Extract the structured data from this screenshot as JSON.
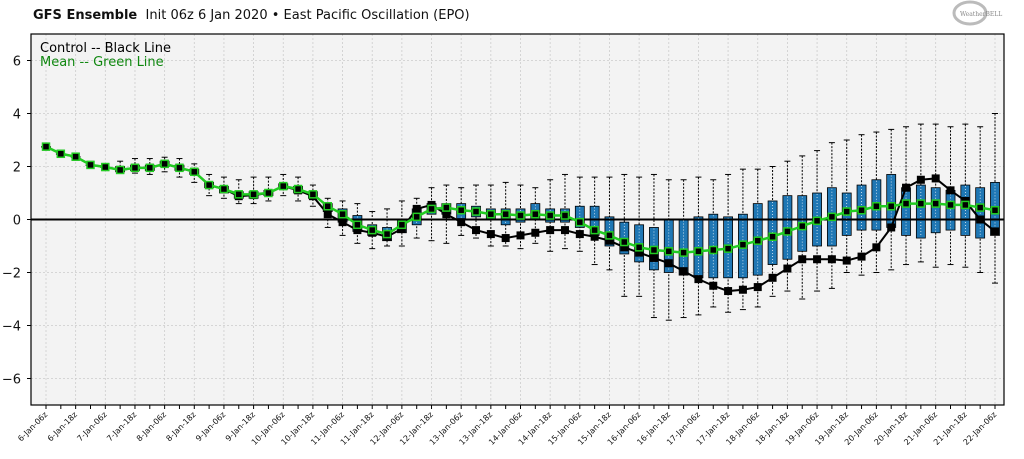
{
  "header": {
    "title_bold": "GFS Ensemble",
    "title_rest": "Init 06z 6 Jan 2020 • East Pacific Oscillation (EPO)",
    "logo_text": "WeatherBELL"
  },
  "colors": {
    "control": "#000000",
    "mean": "#22cc22",
    "mean_text": "#118811",
    "box_fill": "#1f77b4",
    "plot_bg": "#f3f3f3",
    "grid": "#cccccc"
  },
  "chart_data": {
    "type": "box",
    "title": "GFS Ensemble Init 06z 6 Jan 2020 • East Pacific Oscillation (EPO)",
    "xlabel": "",
    "ylabel": "",
    "ylim": [
      -7,
      7
    ],
    "yticks": [
      -6,
      -4,
      -2,
      0,
      2,
      4,
      6
    ],
    "grid": true,
    "legend": {
      "placement": "top-left",
      "entries": [
        {
          "label": "Control -- Black Line",
          "color_key": "control"
        },
        {
          "label": "Mean -- Green Line",
          "color_key": "mean_text"
        }
      ]
    },
    "x_labels": [
      "6-Jan-06z",
      "6-Jan-18z",
      "7-Jan-06z",
      "7-Jan-18z",
      "8-Jan-06z",
      "8-Jan-18z",
      "9-Jan-06z",
      "9-Jan-18z",
      "10-Jan-06z",
      "10-Jan-18z",
      "11-Jan-06z",
      "11-Jan-18z",
      "12-Jan-06z",
      "12-Jan-18z",
      "13-Jan-06z",
      "13-Jan-18z",
      "14-Jan-06z",
      "14-Jan-18z",
      "15-Jan-06z",
      "15-Jan-18z",
      "16-Jan-06z",
      "16-Jan-18z",
      "17-Jan-06z",
      "17-Jan-18z",
      "18-Jan-06z",
      "18-Jan-18z",
      "19-Jan-06z",
      "19-Jan-18z",
      "20-Jan-06z",
      "20-Jan-18z",
      "21-Jan-06z",
      "21-Jan-18z",
      "22-Jan-06z"
    ],
    "x_label_every": 2,
    "n_points": 65,
    "series": [
      {
        "name": "Control",
        "values": [
          2.75,
          2.48,
          2.37,
          2.06,
          1.98,
          1.87,
          1.95,
          1.95,
          2.1,
          1.95,
          1.8,
          1.3,
          1.15,
          0.88,
          0.92,
          1.0,
          1.26,
          1.1,
          0.88,
          0.2,
          -0.1,
          -0.4,
          -0.5,
          -0.65,
          -0.35,
          0.4,
          0.55,
          0.2,
          -0.1,
          -0.4,
          -0.55,
          -0.7,
          -0.6,
          -0.5,
          -0.4,
          -0.4,
          -0.55,
          -0.65,
          -0.8,
          -1.05,
          -1.25,
          -1.45,
          -1.65,
          -1.95,
          -2.25,
          -2.5,
          -2.7,
          -2.65,
          -2.55,
          -2.2,
          -1.85,
          -1.5,
          -1.5,
          -1.5,
          -1.55,
          -1.4,
          -1.05,
          -0.3,
          1.2,
          1.5,
          1.55,
          1.1,
          0.7,
          0.0,
          -0.45
        ]
      },
      {
        "name": "Mean",
        "values": [
          2.75,
          2.48,
          2.37,
          2.06,
          1.98,
          1.87,
          1.95,
          1.95,
          2.1,
          1.95,
          1.8,
          1.3,
          1.15,
          0.95,
          0.95,
          1.0,
          1.26,
          1.15,
          0.95,
          0.5,
          0.2,
          -0.2,
          -0.4,
          -0.55,
          -0.2,
          0.1,
          0.4,
          0.45,
          0.35,
          0.3,
          0.2,
          0.2,
          0.15,
          0.2,
          0.15,
          0.15,
          -0.1,
          -0.4,
          -0.6,
          -0.85,
          -1.05,
          -1.15,
          -1.2,
          -1.25,
          -1.2,
          -1.15,
          -1.1,
          -0.95,
          -0.8,
          -0.65,
          -0.45,
          -0.25,
          -0.05,
          0.1,
          0.3,
          0.35,
          0.5,
          0.5,
          0.6,
          0.6,
          0.6,
          0.55,
          0.55,
          0.45,
          0.35
        ]
      }
    ],
    "boxes": {
      "q1": [
        2.75,
        2.48,
        2.37,
        2.06,
        1.98,
        1.8,
        1.85,
        1.85,
        2.0,
        1.85,
        1.7,
        1.2,
        1.0,
        0.8,
        0.8,
        0.9,
        1.15,
        1.0,
        0.8,
        0.3,
        -0.1,
        -0.45,
        -0.6,
        -0.8,
        -0.5,
        -0.2,
        0.2,
        0.2,
        0.0,
        0.1,
        0.0,
        -0.2,
        -0.1,
        0.0,
        -0.1,
        -0.1,
        -0.3,
        -0.6,
        -1.0,
        -1.3,
        -1.6,
        -1.9,
        -2.0,
        -2.1,
        -2.2,
        -2.2,
        -2.2,
        -2.2,
        -2.1,
        -1.7,
        -1.5,
        -1.2,
        -1.0,
        -1.0,
        -0.6,
        -0.4,
        -0.4,
        -0.3,
        -0.6,
        -0.7,
        -0.5,
        -0.4,
        -0.6,
        -0.7,
        -0.6
      ],
      "q3": [
        2.75,
        2.48,
        2.37,
        2.06,
        1.98,
        2.0,
        2.05,
        2.05,
        2.2,
        2.05,
        1.9,
        1.4,
        1.25,
        1.05,
        1.05,
        1.1,
        1.35,
        1.25,
        1.05,
        0.6,
        0.4,
        0.15,
        -0.2,
        -0.3,
        0.0,
        0.4,
        0.6,
        0.6,
        0.6,
        0.5,
        0.4,
        0.4,
        0.4,
        0.6,
        0.4,
        0.4,
        0.5,
        0.5,
        0.1,
        -0.1,
        -0.2,
        -0.3,
        0.0,
        0.0,
        0.1,
        0.2,
        0.1,
        0.2,
        0.6,
        0.7,
        0.9,
        0.9,
        1.0,
        1.2,
        1.0,
        1.3,
        1.5,
        1.7,
        1.2,
        1.3,
        1.2,
        1.1,
        1.3,
        1.2,
        1.4
      ],
      "lo": [
        2.75,
        2.48,
        2.37,
        2.06,
        1.98,
        1.75,
        1.75,
        1.7,
        1.8,
        1.6,
        1.4,
        0.9,
        0.8,
        0.6,
        0.6,
        0.7,
        0.9,
        0.7,
        0.5,
        -0.3,
        -0.6,
        -0.9,
        -1.1,
        -1.0,
        -1.0,
        -0.7,
        -0.8,
        -0.9,
        -0.6,
        -0.7,
        -1.0,
        -1.0,
        -1.1,
        -0.9,
        -1.2,
        -1.1,
        -1.2,
        -1.7,
        -1.9,
        -2.9,
        -2.9,
        -3.7,
        -3.8,
        -3.7,
        -3.6,
        -3.3,
        -3.5,
        -3.4,
        -3.3,
        -2.9,
        -2.7,
        -3.0,
        -2.7,
        -2.6,
        -2.0,
        -2.1,
        -2.0,
        -1.9,
        -1.7,
        -1.6,
        -1.8,
        -1.7,
        -1.8,
        -2.0,
        -2.4
      ],
      "hi": [
        2.75,
        2.48,
        2.37,
        2.06,
        1.98,
        2.2,
        2.3,
        2.3,
        2.35,
        2.3,
        2.1,
        1.7,
        1.6,
        1.5,
        1.6,
        1.6,
        1.7,
        1.6,
        1.3,
        0.8,
        0.7,
        0.6,
        0.3,
        0.4,
        0.7,
        0.8,
        1.2,
        1.3,
        1.2,
        1.3,
        1.3,
        1.4,
        1.3,
        1.2,
        1.5,
        1.7,
        1.6,
        1.6,
        1.6,
        1.7,
        1.6,
        1.7,
        1.5,
        1.5,
        1.6,
        1.5,
        1.7,
        1.9,
        1.9,
        2.0,
        2.2,
        2.4,
        2.6,
        2.9,
        3.0,
        3.2,
        3.3,
        3.4,
        3.5,
        3.6,
        3.6,
        3.5,
        3.6,
        3.5,
        4.0
      ]
    }
  }
}
